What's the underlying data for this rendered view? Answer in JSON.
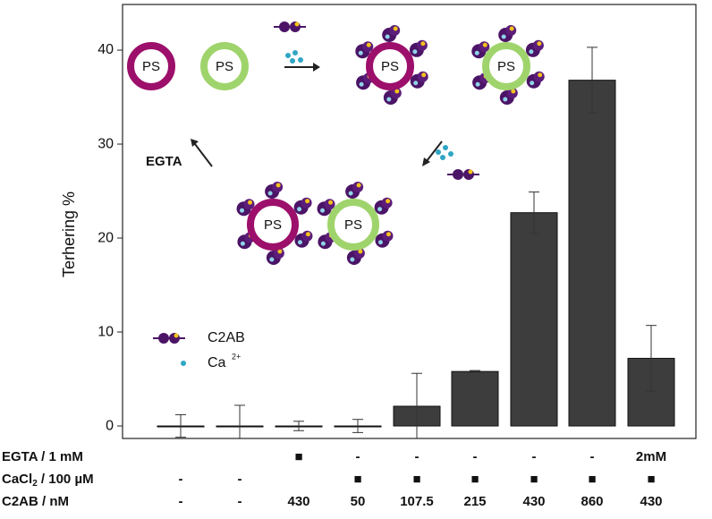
{
  "chart_data": {
    "type": "bar",
    "y_label": "Terhering %",
    "values": [
      0,
      0,
      0,
      0,
      2.1,
      5.8,
      22.7,
      36.8,
      7.2
    ],
    "errors": [
      1.2,
      2.2,
      0.5,
      0.7,
      3.5,
      0.1,
      2.2,
      3.5,
      3.5
    ],
    "color": "#3d3d3d",
    "ylim": [
      -1.33,
      44.86
    ],
    "yticks": [
      0,
      10,
      20,
      30,
      40
    ],
    "conditions": [
      {
        "label": "EGTA / 1 mM",
        "cells": [
          null,
          null,
          "■",
          "-",
          "-",
          "-",
          "-",
          "-",
          "2mM"
        ]
      },
      {
        "label": [
          "CaCl",
          "2",
          " / 100 µM"
        ],
        "cells": [
          "-",
          "-",
          null,
          "■",
          "■",
          "■",
          "■",
          "■",
          "■"
        ]
      },
      {
        "label": "C2AB / nM",
        "cells": [
          "-",
          "-",
          "430",
          "50",
          "107.5",
          "215",
          "430",
          "860",
          "430"
        ]
      }
    ],
    "annotations": {
      "vesicle": "PS",
      "egta": "EGTA",
      "legend_protein": "C2AB",
      "legend_ion": "Ca",
      "legend_ion_charge": "2+"
    }
  }
}
